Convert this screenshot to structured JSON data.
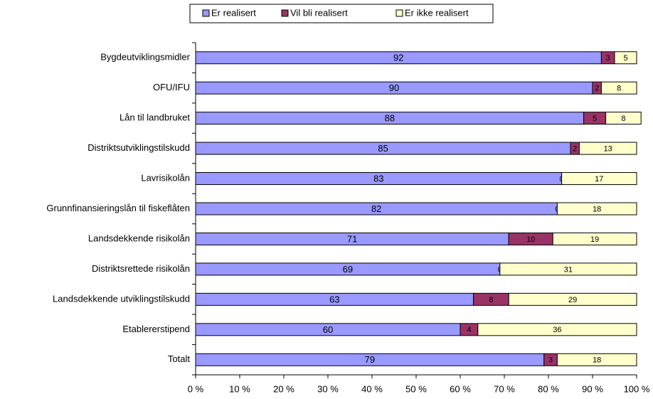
{
  "chart_data": {
    "type": "stacked-barh",
    "categories": [
      "Bygdeutviklingsmidler",
      "OFU/IFU",
      "Lån til landbruket",
      "Distriktsutviklingstilskudd",
      "Lavrisikolån",
      "Grunnfinansieringslån til fiskeflåten",
      "Landsdekkende risikolån",
      "Distriktsrettede risikolån",
      "Landsdekkende utviklingstilskudd",
      "Etablererstipend",
      "Totalt"
    ],
    "series": [
      {
        "name": "Er realisert",
        "color": "#9999ff",
        "values": [
          92,
          90,
          88,
          85,
          83,
          82,
          71,
          69,
          63,
          60,
          79
        ]
      },
      {
        "name": "Vil bli realisert",
        "color": "#993366",
        "values": [
          3,
          2,
          5,
          2,
          0,
          0,
          10,
          0,
          8,
          4,
          3
        ]
      },
      {
        "name": "Er ikke realisert",
        "color": "#ffffcc",
        "values": [
          5,
          8,
          8,
          13,
          17,
          18,
          19,
          31,
          29,
          36,
          18
        ]
      }
    ],
    "xlim": [
      0,
      100
    ],
    "xticks": [
      {
        "value": 0,
        "label": "0 %"
      },
      {
        "value": 10,
        "label": "10 %"
      },
      {
        "value": 20,
        "label": "20 %"
      },
      {
        "value": 30,
        "label": "30 %"
      },
      {
        "value": 40,
        "label": "40 %"
      },
      {
        "value": 50,
        "label": "50 %"
      },
      {
        "value": 60,
        "label": "60 %"
      },
      {
        "value": 70,
        "label": "70 %"
      },
      {
        "value": 80,
        "label": "80 %"
      },
      {
        "value": 90,
        "label": "90 %"
      },
      {
        "value": 100,
        "label": "100 %"
      }
    ],
    "legend": "top",
    "grid": false
  }
}
